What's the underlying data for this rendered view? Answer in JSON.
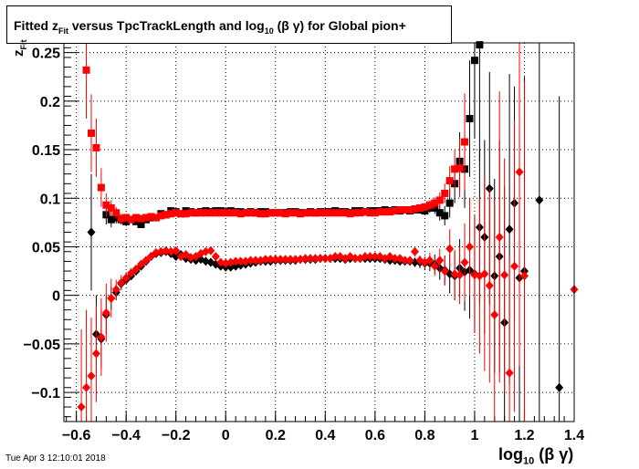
{
  "title": {
    "prefix": "Fitted  z",
    "sub1": "Fit",
    "middle": "  versus TpcTrackLength and log",
    "sub2": "10",
    "suffix": " (β γ) for Global pion+"
  },
  "timestamp": "Tue Apr  3 12:10:01 2018",
  "xlabel": {
    "main": "log",
    "sub": "10",
    "rest": " (β γ)"
  },
  "ylabel": {
    "main": "z",
    "sub": "Fit"
  },
  "chart_data": {
    "type": "scatter",
    "xlim": [
      -0.65,
      1.4
    ],
    "ylim": [
      -0.13,
      0.26
    ],
    "xticks": [
      -0.6,
      -0.4,
      -0.2,
      0,
      0.2,
      0.4,
      0.6,
      0.8,
      1,
      1.2,
      1.4
    ],
    "xtick_labels": [
      "−0.6",
      "−0.4",
      "−0.2",
      "0",
      "0.2",
      "0.4",
      "0.6",
      "0.8",
      "1",
      "1.2",
      "1.4"
    ],
    "yticks": [
      -0.1,
      -0.05,
      0,
      0.05,
      0.1,
      0.15,
      0.2,
      0.25
    ],
    "ytick_labels": [
      "−0.1",
      "−0.05",
      "0",
      "0.05",
      "0.1",
      "0.15",
      "0.2",
      "0.25"
    ],
    "grid": true,
    "colors": {
      "black": "#000000",
      "red": "#ff0000"
    },
    "series": [
      {
        "color": "#000000",
        "marker": "square",
        "x": [
          -0.48,
          -0.46,
          -0.44,
          -0.42,
          -0.4,
          -0.38,
          -0.36,
          -0.34,
          -0.32,
          -0.3,
          -0.28,
          -0.26,
          -0.24,
          -0.22,
          -0.2,
          -0.18,
          -0.16,
          -0.14,
          -0.12,
          -0.1,
          -0.08,
          -0.06,
          -0.04,
          -0.02,
          0.0,
          0.02,
          0.04,
          0.06,
          0.08,
          0.1,
          0.12,
          0.14,
          0.16,
          0.18,
          0.2,
          0.22,
          0.24,
          0.26,
          0.28,
          0.3,
          0.32,
          0.34,
          0.36,
          0.38,
          0.4,
          0.42,
          0.44,
          0.46,
          0.48,
          0.5,
          0.52,
          0.54,
          0.56,
          0.58,
          0.6,
          0.62,
          0.64,
          0.66,
          0.68,
          0.7,
          0.72,
          0.74,
          0.76,
          0.78,
          0.8,
          0.82,
          0.84,
          0.86,
          0.88,
          0.9,
          0.92,
          0.94,
          0.96,
          0.98,
          1.0,
          1.02
        ],
        "y": [
          0.083,
          0.078,
          0.08,
          0.078,
          0.076,
          0.078,
          0.076,
          0.073,
          0.078,
          0.08,
          0.08,
          0.084,
          0.083,
          0.087,
          0.086,
          0.084,
          0.087,
          0.086,
          0.085,
          0.086,
          0.087,
          0.086,
          0.087,
          0.087,
          0.086,
          0.087,
          0.086,
          0.086,
          0.085,
          0.086,
          0.085,
          0.086,
          0.086,
          0.085,
          0.085,
          0.085,
          0.085,
          0.086,
          0.086,
          0.085,
          0.085,
          0.086,
          0.085,
          0.086,
          0.086,
          0.086,
          0.087,
          0.086,
          0.086,
          0.085,
          0.087,
          0.087,
          0.086,
          0.087,
          0.087,
          0.087,
          0.088,
          0.087,
          0.088,
          0.087,
          0.088,
          0.087,
          0.088,
          0.088,
          0.087,
          0.09,
          0.09,
          0.085,
          0.082,
          0.095,
          0.115,
          0.138,
          0.13,
          0.182,
          0.242,
          0.258
        ],
        "err": [
          0.01,
          0.008,
          0.006,
          0.005,
          0.004,
          0.003,
          0.003,
          0.003,
          0.003,
          0.003,
          0.002,
          0.002,
          0.002,
          0.002,
          0.002,
          0.002,
          0.002,
          0.002,
          0.002,
          0.002,
          0.002,
          0.002,
          0.002,
          0.002,
          0.002,
          0.002,
          0.002,
          0.002,
          0.002,
          0.002,
          0.002,
          0.002,
          0.002,
          0.002,
          0.002,
          0.002,
          0.002,
          0.002,
          0.002,
          0.002,
          0.002,
          0.002,
          0.002,
          0.002,
          0.002,
          0.002,
          0.002,
          0.002,
          0.002,
          0.002,
          0.002,
          0.002,
          0.002,
          0.002,
          0.002,
          0.002,
          0.002,
          0.002,
          0.002,
          0.002,
          0.002,
          0.002,
          0.003,
          0.003,
          0.004,
          0.005,
          0.006,
          0.008,
          0.01,
          0.015,
          0.02,
          0.03,
          0.04,
          0.06,
          0.08,
          0.12
        ]
      },
      {
        "color": "#ff0000",
        "marker": "square",
        "x": [
          -0.56,
          -0.54,
          -0.52,
          -0.5,
          -0.48,
          -0.46,
          -0.44,
          -0.42,
          -0.4,
          -0.38,
          -0.36,
          -0.34,
          -0.32,
          -0.3,
          -0.28,
          -0.26,
          -0.24,
          -0.22,
          -0.2,
          -0.18,
          -0.16,
          -0.14,
          -0.12,
          -0.1,
          -0.08,
          -0.06,
          -0.04,
          -0.02,
          0.0,
          0.02,
          0.04,
          0.06,
          0.08,
          0.1,
          0.12,
          0.14,
          0.16,
          0.18,
          0.2,
          0.22,
          0.24,
          0.26,
          0.28,
          0.3,
          0.32,
          0.34,
          0.36,
          0.38,
          0.4,
          0.42,
          0.44,
          0.46,
          0.48,
          0.5,
          0.52,
          0.54,
          0.56,
          0.58,
          0.6,
          0.62,
          0.64,
          0.66,
          0.68,
          0.7,
          0.72,
          0.74,
          0.76,
          0.78,
          0.8,
          0.82,
          0.84,
          0.86,
          0.88,
          0.9,
          0.92,
          0.94,
          0.96
        ],
        "y": [
          0.232,
          0.167,
          0.152,
          0.111,
          0.093,
          0.09,
          0.085,
          0.079,
          0.08,
          0.078,
          0.08,
          0.079,
          0.08,
          0.081,
          0.08,
          0.082,
          0.083,
          0.084,
          0.085,
          0.084,
          0.084,
          0.085,
          0.085,
          0.085,
          0.085,
          0.085,
          0.085,
          0.085,
          0.085,
          0.085,
          0.085,
          0.084,
          0.085,
          0.085,
          0.085,
          0.084,
          0.084,
          0.085,
          0.085,
          0.085,
          0.084,
          0.085,
          0.085,
          0.084,
          0.085,
          0.085,
          0.085,
          0.085,
          0.085,
          0.085,
          0.085,
          0.085,
          0.085,
          0.084,
          0.085,
          0.085,
          0.086,
          0.085,
          0.085,
          0.086,
          0.086,
          0.086,
          0.087,
          0.088,
          0.088,
          0.088,
          0.089,
          0.09,
          0.091,
          0.093,
          0.095,
          0.098,
          0.105,
          0.118,
          0.13,
          0.131,
          0.158
        ],
        "err": [
          0.05,
          0.04,
          0.03,
          0.02,
          0.012,
          0.008,
          0.006,
          0.005,
          0.004,
          0.003,
          0.003,
          0.003,
          0.002,
          0.002,
          0.002,
          0.002,
          0.002,
          0.002,
          0.002,
          0.002,
          0.002,
          0.002,
          0.002,
          0.002,
          0.002,
          0.002,
          0.002,
          0.002,
          0.002,
          0.002,
          0.002,
          0.002,
          0.002,
          0.002,
          0.002,
          0.002,
          0.002,
          0.002,
          0.002,
          0.002,
          0.002,
          0.002,
          0.002,
          0.002,
          0.002,
          0.002,
          0.002,
          0.002,
          0.002,
          0.002,
          0.002,
          0.002,
          0.002,
          0.002,
          0.002,
          0.002,
          0.002,
          0.002,
          0.002,
          0.002,
          0.002,
          0.002,
          0.002,
          0.002,
          0.002,
          0.002,
          0.003,
          0.003,
          0.004,
          0.005,
          0.006,
          0.008,
          0.01,
          0.015,
          0.02,
          0.03,
          0.05
        ]
      },
      {
        "color": "#000000",
        "marker": "diamond",
        "x": [
          -0.54,
          -0.52,
          -0.5,
          -0.48,
          -0.46,
          -0.44,
          -0.42,
          -0.4,
          -0.38,
          -0.36,
          -0.34,
          -0.32,
          -0.3,
          -0.28,
          -0.26,
          -0.24,
          -0.22,
          -0.2,
          -0.18,
          -0.16,
          -0.14,
          -0.12,
          -0.1,
          -0.08,
          -0.06,
          -0.04,
          -0.02,
          0.0,
          0.02,
          0.04,
          0.06,
          0.08,
          0.1,
          0.12,
          0.14,
          0.16,
          0.18,
          0.2,
          0.22,
          0.24,
          0.26,
          0.28,
          0.3,
          0.32,
          0.34,
          0.36,
          0.38,
          0.4,
          0.42,
          0.44,
          0.46,
          0.48,
          0.5,
          0.52,
          0.54,
          0.56,
          0.58,
          0.6,
          0.62,
          0.64,
          0.66,
          0.68,
          0.7,
          0.72,
          0.74,
          0.76,
          0.78,
          0.8,
          0.82,
          0.84,
          0.86,
          0.88,
          0.9,
          0.92,
          0.94,
          0.96,
          0.98,
          1.0,
          1.02,
          1.04,
          1.06,
          1.08,
          1.1,
          1.12,
          1.14,
          1.16,
          1.18,
          1.2,
          1.26,
          1.34
        ],
        "y": [
          0.065,
          -0.04,
          -0.045,
          -0.02,
          -0.003,
          0.003,
          0.012,
          0.016,
          0.02,
          0.025,
          0.03,
          0.035,
          0.04,
          0.043,
          0.044,
          0.045,
          0.043,
          0.04,
          0.042,
          0.038,
          0.037,
          0.036,
          0.037,
          0.035,
          0.034,
          0.032,
          0.03,
          0.029,
          0.029,
          0.03,
          0.031,
          0.032,
          0.033,
          0.034,
          0.035,
          0.035,
          0.035,
          0.036,
          0.036,
          0.036,
          0.036,
          0.036,
          0.037,
          0.037,
          0.037,
          0.037,
          0.038,
          0.038,
          0.038,
          0.038,
          0.038,
          0.037,
          0.038,
          0.038,
          0.038,
          0.038,
          0.038,
          0.038,
          0.038,
          0.037,
          0.036,
          0.036,
          0.035,
          0.035,
          0.035,
          0.034,
          0.034,
          0.033,
          0.033,
          0.032,
          0.028,
          0.026,
          0.022,
          0.02,
          0.028,
          0.024,
          0.026,
          0.022,
          0.07,
          0.06,
          0.11,
          0.02,
          0.04,
          -0.028,
          0.068,
          0.095,
          0.018,
          0.025,
          0.098,
          -0.095
        ],
        "err": [
          0.06,
          0.04,
          0.03,
          0.02,
          0.012,
          0.008,
          0.006,
          0.005,
          0.004,
          0.004,
          0.003,
          0.003,
          0.003,
          0.003,
          0.003,
          0.003,
          0.003,
          0.003,
          0.003,
          0.003,
          0.003,
          0.003,
          0.003,
          0.003,
          0.003,
          0.003,
          0.003,
          0.003,
          0.003,
          0.003,
          0.003,
          0.003,
          0.003,
          0.003,
          0.003,
          0.003,
          0.003,
          0.003,
          0.003,
          0.003,
          0.003,
          0.003,
          0.003,
          0.003,
          0.003,
          0.003,
          0.003,
          0.003,
          0.003,
          0.003,
          0.003,
          0.003,
          0.003,
          0.003,
          0.003,
          0.003,
          0.003,
          0.003,
          0.003,
          0.003,
          0.003,
          0.003,
          0.003,
          0.004,
          0.004,
          0.005,
          0.006,
          0.007,
          0.008,
          0.01,
          0.012,
          0.015,
          0.02,
          0.025,
          0.03,
          0.04,
          0.05,
          0.06,
          0.08,
          0.1,
          0.12,
          0.1,
          0.12,
          0.14,
          0.16,
          0.12,
          0.15,
          0.2,
          0.25,
          0.3
        ]
      },
      {
        "color": "#ff0000",
        "marker": "diamond",
        "x": [
          -0.58,
          -0.56,
          -0.54,
          -0.52,
          -0.5,
          -0.48,
          -0.46,
          -0.44,
          -0.42,
          -0.4,
          -0.38,
          -0.36,
          -0.34,
          -0.32,
          -0.3,
          -0.28,
          -0.26,
          -0.24,
          -0.22,
          -0.2,
          -0.18,
          -0.16,
          -0.14,
          -0.12,
          -0.1,
          -0.08,
          -0.06,
          -0.04,
          -0.02,
          0.0,
          0.02,
          0.04,
          0.06,
          0.08,
          0.1,
          0.12,
          0.14,
          0.16,
          0.18,
          0.2,
          0.22,
          0.24,
          0.26,
          0.28,
          0.3,
          0.32,
          0.34,
          0.36,
          0.38,
          0.4,
          0.42,
          0.44,
          0.46,
          0.48,
          0.5,
          0.52,
          0.54,
          0.56,
          0.58,
          0.6,
          0.62,
          0.64,
          0.66,
          0.68,
          0.7,
          0.72,
          0.74,
          0.76,
          0.78,
          0.8,
          0.82,
          0.84,
          0.86,
          0.88,
          0.9,
          0.92,
          0.94,
          0.96,
          0.98,
          1.0,
          1.02,
          1.04,
          1.06,
          1.08,
          1.1,
          1.12,
          1.14,
          1.16,
          1.18,
          1.2,
          1.4
        ],
        "y": [
          -0.115,
          -0.095,
          -0.083,
          -0.06,
          -0.043,
          -0.018,
          -0.003,
          0.006,
          0.013,
          0.018,
          0.023,
          0.027,
          0.032,
          0.036,
          0.04,
          0.044,
          0.045,
          0.046,
          0.045,
          0.046,
          0.04,
          0.042,
          0.039,
          0.04,
          0.043,
          0.045,
          0.046,
          0.04,
          0.034,
          0.033,
          0.034,
          0.035,
          0.035,
          0.035,
          0.036,
          0.036,
          0.036,
          0.037,
          0.037,
          0.037,
          0.037,
          0.037,
          0.037,
          0.037,
          0.037,
          0.038,
          0.038,
          0.038,
          0.038,
          0.038,
          0.038,
          0.04,
          0.04,
          0.038,
          0.04,
          0.038,
          0.038,
          0.04,
          0.04,
          0.04,
          0.04,
          0.038,
          0.04,
          0.038,
          0.038,
          0.036,
          0.036,
          0.045,
          0.036,
          0.034,
          0.036,
          0.03,
          0.036,
          0.025,
          0.048,
          0.022,
          0.021,
          0.034,
          0.05,
          0.021,
          0.02,
          0.022,
          0.01,
          -0.02,
          0.06,
          0.021,
          -0.08,
          0.03,
          0.127,
          0.02,
          0.006
        ],
        "err": [
          0.08,
          0.08,
          0.06,
          0.05,
          0.04,
          0.03,
          0.02,
          0.01,
          0.008,
          0.006,
          0.005,
          0.004,
          0.004,
          0.003,
          0.003,
          0.003,
          0.003,
          0.003,
          0.003,
          0.003,
          0.003,
          0.003,
          0.003,
          0.003,
          0.003,
          0.003,
          0.003,
          0.003,
          0.003,
          0.003,
          0.003,
          0.003,
          0.003,
          0.003,
          0.003,
          0.003,
          0.003,
          0.003,
          0.003,
          0.003,
          0.003,
          0.003,
          0.003,
          0.003,
          0.003,
          0.003,
          0.003,
          0.003,
          0.003,
          0.003,
          0.003,
          0.003,
          0.003,
          0.003,
          0.003,
          0.003,
          0.003,
          0.003,
          0.003,
          0.003,
          0.003,
          0.003,
          0.003,
          0.003,
          0.003,
          0.003,
          0.004,
          0.005,
          0.005,
          0.006,
          0.008,
          0.01,
          0.012,
          0.015,
          0.02,
          0.025,
          0.03,
          0.04,
          0.05,
          0.06,
          0.08,
          0.1,
          0.1,
          0.12,
          0.15,
          0.12,
          0.12,
          0.15,
          0.2,
          0.2,
          0.35
        ]
      }
    ]
  }
}
